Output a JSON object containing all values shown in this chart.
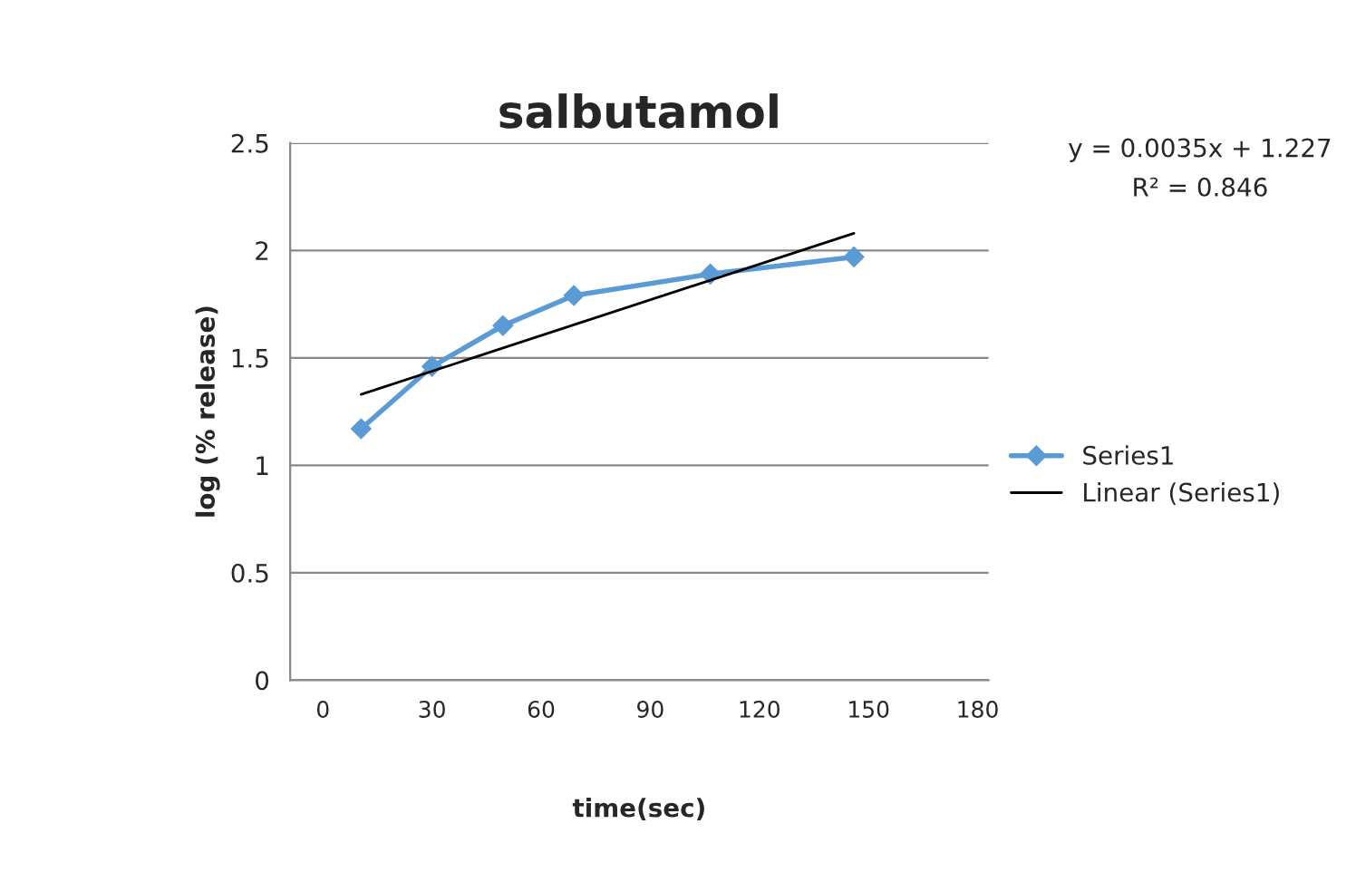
{
  "chart_data": {
    "type": "line",
    "title": "salbutamol",
    "xlabel": "time(sec)",
    "ylabel": "log (% release)",
    "xlim": [
      -9,
      183
    ],
    "xticks": [
      0,
      30,
      60,
      90,
      120,
      150,
      180
    ],
    "ylim": [
      0,
      2.5
    ],
    "yticks": [
      0,
      0.5,
      1,
      1.5,
      2,
      2.5
    ],
    "grid": "y",
    "legend": "right",
    "marker": "diamond",
    "line_style": "solid",
    "series": [
      {
        "name": "Series1",
        "color": "#5b9bd5",
        "x": [
          10.5,
          30,
          49.5,
          69,
          106.5,
          146
        ],
        "values": [
          1.17,
          1.46,
          1.65,
          1.79,
          1.89,
          1.97
        ]
      },
      {
        "name": "Linear (Series1)",
        "type": "line",
        "marker": "none",
        "color": "#000000",
        "x": [
          10.5,
          146
        ],
        "values": [
          1.33,
          2.08
        ]
      }
    ],
    "annotations": [
      "y = 0.0035x + 1.227",
      "R² = 0.846"
    ]
  }
}
